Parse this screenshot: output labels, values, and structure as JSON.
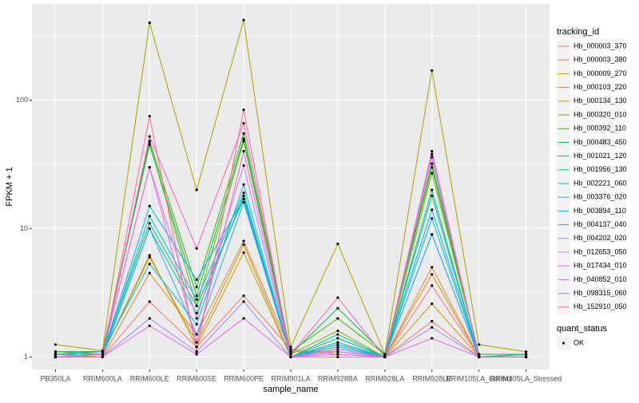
{
  "chart_data": {
    "type": "line",
    "x_label": "sample_name",
    "y_label": "FPKM + 1",
    "y_scale": "log",
    "grid": true,
    "legend_title": "tracking_id",
    "legend_position": "right",
    "point_legend": {
      "title": "quant_status",
      "labels": [
        "OK"
      ],
      "color": "#000000"
    },
    "categories": [
      "PB350LA",
      "RRIM600LA",
      "RRIM600LE",
      "RRIM600SE",
      "RRIM600PE",
      "RRIM901LA",
      "RRIM928BA",
      "RRIM928LA",
      "RRIM928LE",
      "RRIM105LA_Control",
      "RRIM105LA_Stressed"
    ],
    "ylim": [
      0.8,
      560
    ],
    "yticks": [
      1,
      10,
      100
    ],
    "series": [
      {
        "name": "Hb_000003_370",
        "color": "#F8766D",
        "values": [
          1.0,
          1.0,
          2.7,
          1.2,
          3.0,
          1.15,
          1.05,
          1.0,
          1.9,
          1.0,
          1.0
        ]
      },
      {
        "name": "Hb_000003_380",
        "color": "#EA8331",
        "values": [
          1.05,
          1.0,
          4.5,
          1.5,
          8.0,
          1.1,
          1.1,
          1.0,
          5.0,
          1.0,
          1.0
        ]
      },
      {
        "name": "Hb_000009_270",
        "color": "#D89000",
        "values": [
          1.0,
          1.05,
          6.0,
          1.3,
          7.5,
          1.0,
          1.2,
          1.0,
          4.4,
          1.0,
          1.0
        ]
      },
      {
        "name": "Hb_000103_220",
        "color": "#C09B00",
        "values": [
          1.1,
          1.05,
          6.2,
          1.2,
          6.5,
          1.0,
          1.3,
          1.0,
          2.6,
          1.0,
          1.05
        ]
      },
      {
        "name": "Hb_000134_130",
        "color": "#A3A500",
        "values": [
          1.25,
          1.12,
          400,
          20,
          420,
          1.2,
          7.6,
          1.05,
          170,
          1.25,
          1.1
        ]
      },
      {
        "name": "Hb_000320_010",
        "color": "#7CAE00",
        "values": [
          1.05,
          1.05,
          46,
          2.5,
          48,
          1.05,
          1.6,
          1.0,
          27,
          1.05,
          1.05
        ]
      },
      {
        "name": "Hb_000392_110",
        "color": "#39B600",
        "values": [
          1.1,
          1.1,
          48,
          3.5,
          55,
          1.1,
          2.0,
          1.05,
          30,
          1.05,
          1.05
        ]
      },
      {
        "name": "Hb_000483_450",
        "color": "#00BB4E",
        "values": [
          1.1,
          1.1,
          45,
          3.0,
          50,
          1.05,
          2.4,
          1.05,
          32,
          1.05,
          1.05
        ]
      },
      {
        "name": "Hb_001021_120",
        "color": "#00BF7D",
        "values": [
          1.05,
          1.1,
          11,
          2.5,
          17,
          1.0,
          1.4,
          1.0,
          20,
          1.0,
          1.05
        ]
      },
      {
        "name": "Hb_001956_130",
        "color": "#00C1A3",
        "values": [
          1.05,
          1.05,
          10,
          2.2,
          18,
          1.0,
          1.5,
          1.0,
          18,
          1.0,
          1.05
        ]
      },
      {
        "name": "Hb_002221_060",
        "color": "#00BFC4",
        "values": [
          1.0,
          1.05,
          12.5,
          2.8,
          19,
          1.0,
          1.3,
          1.0,
          12,
          1.0,
          1.0
        ]
      },
      {
        "name": "Hb_003376_020",
        "color": "#00BAE0",
        "values": [
          1.05,
          1.1,
          5.3,
          1.8,
          22,
          1.0,
          1.2,
          1.0,
          9,
          1.0,
          1.0
        ]
      },
      {
        "name": "Hb_003894_110",
        "color": "#00B0F6",
        "values": [
          1.0,
          1.05,
          15,
          4.0,
          17,
          1.0,
          1.25,
          1.0,
          14,
          1.0,
          1.0
        ]
      },
      {
        "name": "Hb_004137_040",
        "color": "#35A2FF",
        "values": [
          1.0,
          1.0,
          10,
          1.5,
          16,
          1.0,
          1.15,
          1.0,
          9,
          1.0,
          1.0
        ]
      },
      {
        "name": "Hb_004202_020",
        "color": "#9590FF",
        "values": [
          1.0,
          1.0,
          2.0,
          1.1,
          2.7,
          1.0,
          1.1,
          1.0,
          1.7,
          1.0,
          1.0
        ]
      },
      {
        "name": "Hb_012653_050",
        "color": "#C77CFF",
        "values": [
          1.0,
          1.05,
          30,
          2.0,
          31,
          1.0,
          1.1,
          1.0,
          36,
          1.0,
          1.0
        ]
      },
      {
        "name": "Hb_017434_010",
        "color": "#E76BF3",
        "values": [
          1.0,
          1.0,
          1.75,
          1.05,
          2.0,
          1.0,
          1.05,
          1.0,
          1.4,
          1.0,
          1.0
        ]
      },
      {
        "name": "Hb_040852_010",
        "color": "#FA62DB",
        "values": [
          1.0,
          1.05,
          30,
          1.3,
          40,
          1.0,
          1.15,
          1.0,
          38,
          1.0,
          1.0
        ]
      },
      {
        "name": "Hb_098315_060",
        "color": "#FF62BC",
        "values": [
          1.0,
          1.0,
          52,
          7.0,
          66,
          1.05,
          2.9,
          1.0,
          40,
          1.0,
          1.0
        ]
      },
      {
        "name": "Hb_152910_050",
        "color": "#FF6C91",
        "values": [
          1.0,
          1.0,
          75,
          1.1,
          84,
          1.0,
          1.0,
          1.0,
          3.6,
          1.0,
          1.0
        ]
      }
    ]
  }
}
